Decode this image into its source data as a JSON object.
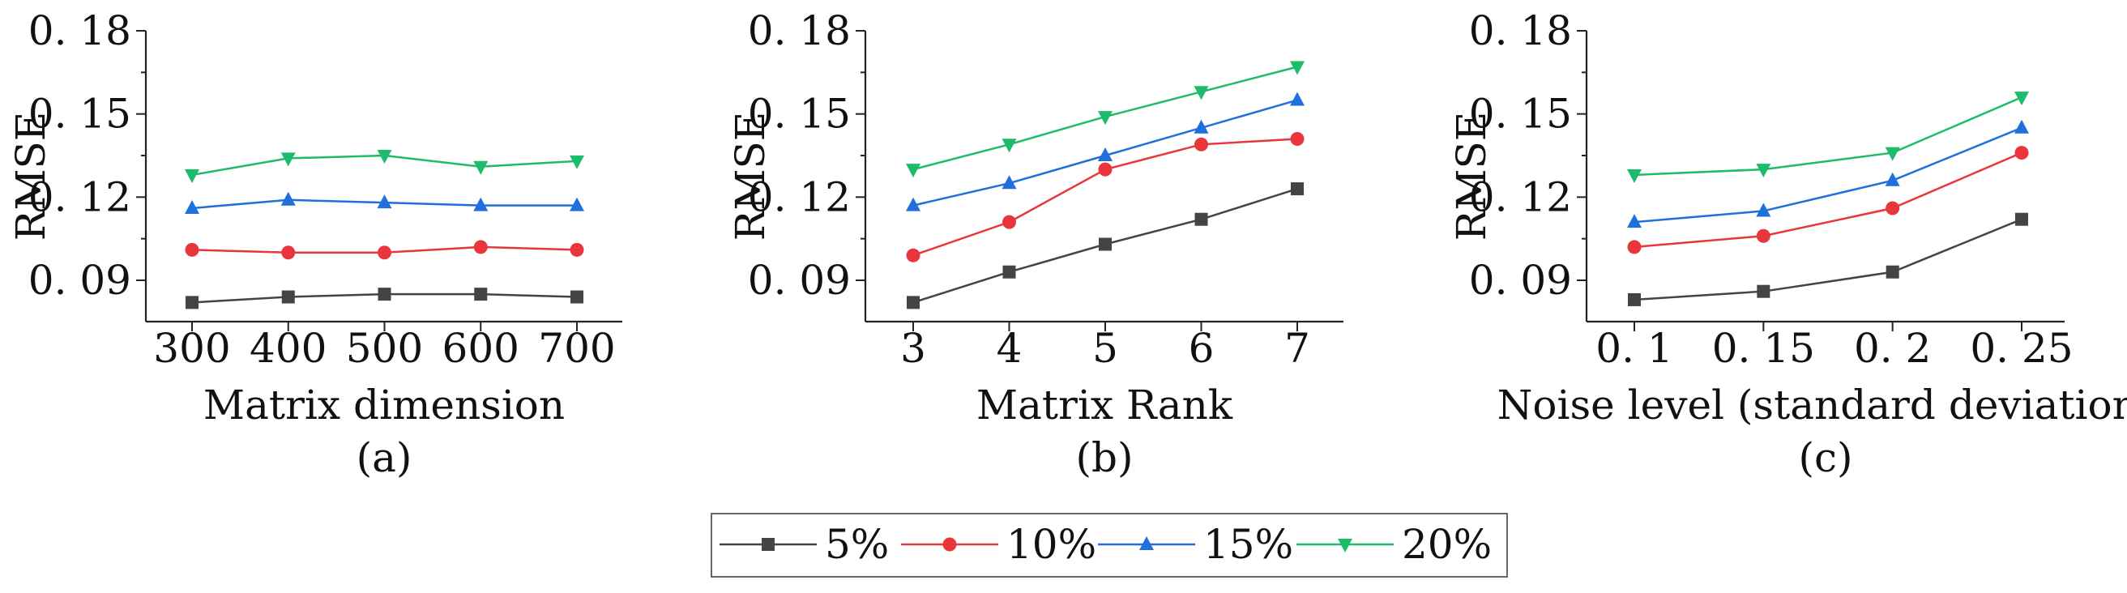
{
  "chart_data": [
    {
      "type": "line",
      "panel": "(a)",
      "xlabel": "Matrix dimension",
      "ylabel": "RMSE",
      "categories": [
        "300",
        "400",
        "500",
        "600",
        "700"
      ],
      "yticks": [
        "0. 09",
        "0. 12",
        "0. 15",
        "0. 18"
      ],
      "ylim": [
        0.075,
        0.18
      ],
      "grid": false,
      "series": [
        {
          "name": "5%",
          "values": [
            0.082,
            0.084,
            0.085,
            0.085,
            0.084
          ]
        },
        {
          "name": "10%",
          "values": [
            0.101,
            0.1,
            0.1,
            0.102,
            0.101
          ]
        },
        {
          "name": "15%",
          "values": [
            0.116,
            0.119,
            0.118,
            0.117,
            0.117
          ]
        },
        {
          "name": "20%",
          "values": [
            0.128,
            0.134,
            0.135,
            0.131,
            0.133
          ]
        }
      ]
    },
    {
      "type": "line",
      "panel": "(b)",
      "xlabel": "Matrix Rank",
      "ylabel": "RMSE",
      "categories": [
        "3",
        "4",
        "5",
        "6",
        "7"
      ],
      "yticks": [
        "0. 09",
        "0. 12",
        "0. 15",
        "0. 18"
      ],
      "ylim": [
        0.075,
        0.18
      ],
      "grid": false,
      "series": [
        {
          "name": "5%",
          "values": [
            0.082,
            0.093,
            0.103,
            0.112,
            0.123
          ]
        },
        {
          "name": "10%",
          "values": [
            0.099,
            0.111,
            0.13,
            0.139,
            0.141
          ]
        },
        {
          "name": "15%",
          "values": [
            0.117,
            0.125,
            0.135,
            0.145,
            0.155
          ]
        },
        {
          "name": "20%",
          "values": [
            0.13,
            0.139,
            0.149,
            0.158,
            0.167
          ]
        }
      ]
    },
    {
      "type": "line",
      "panel": "(c)",
      "xlabel": "Noise level (standard deviation)",
      "ylabel": "RMSE",
      "categories": [
        "0. 1",
        "0. 15",
        "0. 2",
        "0. 25"
      ],
      "yticks": [
        "0. 09",
        "0. 12",
        "0. 15",
        "0. 18"
      ],
      "ylim": [
        0.075,
        0.18
      ],
      "grid": false,
      "series": [
        {
          "name": "5%",
          "values": [
            0.083,
            0.086,
            0.093,
            0.112
          ]
        },
        {
          "name": "10%",
          "values": [
            0.102,
            0.106,
            0.116,
            0.136
          ]
        },
        {
          "name": "15%",
          "values": [
            0.111,
            0.115,
            0.126,
            0.145
          ]
        },
        {
          "name": "20%",
          "values": [
            0.128,
            0.13,
            0.136,
            0.156
          ]
        }
      ]
    }
  ],
  "legend": {
    "placement": "bottom-center",
    "items": [
      {
        "name": "5%",
        "color": "#444444",
        "marker": "square"
      },
      {
        "name": "10%",
        "color": "#e8363c",
        "marker": "circle"
      },
      {
        "name": "15%",
        "color": "#1f6fdc",
        "marker": "triangle-up"
      },
      {
        "name": "20%",
        "color": "#1dbc6a",
        "marker": "triangle-down"
      }
    ]
  }
}
